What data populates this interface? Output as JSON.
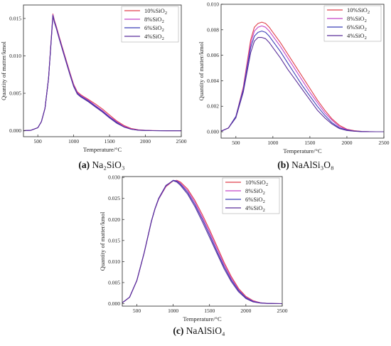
{
  "chart_data": [
    {
      "type": "line",
      "caption_letter": "(a)",
      "caption_text": "Na₂SiO₃",
      "xlabel": "Temperature/°C",
      "ylabel": "Quantity of matter/kmol",
      "xlim": [
        300,
        2500
      ],
      "ylim": [
        -0.0008,
        0.0168
      ],
      "xticks": [
        "500",
        "1000",
        "1500",
        "2000",
        "2500"
      ],
      "xtick_values": [
        500,
        1000,
        1500,
        2000,
        2500
      ],
      "yticks": [
        "0.000",
        "0.005",
        "0.010",
        "0.015"
      ],
      "ytick_values": [
        0,
        0.005,
        0.01,
        0.015
      ],
      "legend_position": "top-right",
      "series": [
        {
          "name": "10%SiO₂",
          "color": "#e0404c",
          "x": [
            300,
            400,
            500,
            550,
            600,
            650,
            690,
            710,
            730,
            760,
            800,
            850,
            900,
            950,
            1000,
            1050,
            1100,
            1150,
            1200,
            1300,
            1400,
            1500,
            1600,
            1700,
            1800,
            1900,
            2000,
            2100,
            2200,
            2300,
            2400,
            2500
          ],
          "y": [
            0,
            5e-05,
            0.0004,
            0.0012,
            0.003,
            0.007,
            0.0128,
            0.0156,
            0.0148,
            0.0139,
            0.0125,
            0.0109,
            0.0093,
            0.0077,
            0.0062,
            0.0052,
            0.0048,
            0.0045,
            0.0042,
            0.0036,
            0.0029,
            0.0021,
            0.0013,
            0.0007,
            0.0003,
            0.00012,
            5e-05,
            2e-05,
            1e-05,
            0,
            0,
            0
          ]
        },
        {
          "name": "8%SiO₂",
          "color": "#c445c8",
          "x": [
            300,
            400,
            500,
            550,
            600,
            650,
            690,
            710,
            730,
            760,
            800,
            850,
            900,
            950,
            1000,
            1050,
            1100,
            1150,
            1200,
            1300,
            1400,
            1500,
            1600,
            1700,
            1800,
            1900,
            2000,
            2100,
            2200,
            2300,
            2400,
            2500
          ],
          "y": [
            0,
            5e-05,
            0.0004,
            0.0012,
            0.003,
            0.007,
            0.0127,
            0.0155,
            0.0147,
            0.0138,
            0.0124,
            0.0108,
            0.0092,
            0.0076,
            0.0061,
            0.0051,
            0.0047,
            0.0044,
            0.0041,
            0.0034,
            0.0027,
            0.0019,
            0.0012,
            0.0006,
            0.00025,
            0.0001,
            4e-05,
            2e-05,
            1e-05,
            0,
            0,
            0
          ]
        },
        {
          "name": "6%SiO₂",
          "color": "#3b3fb8",
          "x": [
            300,
            400,
            500,
            550,
            600,
            650,
            690,
            710,
            730,
            760,
            800,
            850,
            900,
            950,
            1000,
            1050,
            1100,
            1150,
            1200,
            1300,
            1400,
            1500,
            1600,
            1700,
            1800,
            1900,
            2000,
            2100,
            2200,
            2300,
            2400,
            2500
          ],
          "y": [
            0,
            5e-05,
            0.0004,
            0.0012,
            0.003,
            0.007,
            0.0126,
            0.0154,
            0.0146,
            0.0137,
            0.0123,
            0.0107,
            0.0091,
            0.0075,
            0.006,
            0.005,
            0.0046,
            0.0043,
            0.004,
            0.0033,
            0.0026,
            0.0018,
            0.0011,
            0.0005,
            0.0002,
            8e-05,
            3e-05,
            1e-05,
            0,
            0,
            0,
            0
          ]
        },
        {
          "name": "4%SiO₂",
          "color": "#5a2f9a",
          "x": [
            300,
            400,
            500,
            550,
            600,
            650,
            690,
            710,
            730,
            760,
            800,
            850,
            900,
            950,
            1000,
            1050,
            1100,
            1150,
            1200,
            1300,
            1400,
            1500,
            1600,
            1700,
            1800,
            1900,
            2000,
            2100,
            2200,
            2300,
            2400,
            2500
          ],
          "y": [
            0,
            5e-05,
            0.0004,
            0.0012,
            0.003,
            0.007,
            0.0125,
            0.0153,
            0.0145,
            0.0136,
            0.0122,
            0.0106,
            0.009,
            0.0074,
            0.0059,
            0.0049,
            0.0045,
            0.0042,
            0.0039,
            0.0032,
            0.0025,
            0.0017,
            0.001,
            0.0005,
            0.0002,
            7e-05,
            3e-05,
            1e-05,
            0,
            0,
            0,
            0
          ]
        }
      ]
    },
    {
      "type": "line",
      "caption_letter": "(b)",
      "caption_text": "NaAlSi₃O₈",
      "xlabel": "Temperature/°C",
      "ylabel": "Quantity of matter/kmol",
      "xlim": [
        300,
        2500
      ],
      "ylim": [
        -0.0005,
        0.01
      ],
      "xticks": [
        "500",
        "1000",
        "1500",
        "2000",
        "2500"
      ],
      "xtick_values": [
        500,
        1000,
        1500,
        2000,
        2500
      ],
      "yticks": [
        "0.000",
        "0.002",
        "0.004",
        "0.006",
        "0.008",
        "0.010"
      ],
      "ytick_values": [
        0,
        0.002,
        0.004,
        0.006,
        0.008,
        0.01
      ],
      "legend_position": "top-right",
      "series": [
        {
          "name": "10%SiO₂",
          "color": "#e0404c",
          "x": [
            300,
            400,
            500,
            600,
            700,
            750,
            800,
            850,
            900,
            950,
            1000,
            1100,
            1200,
            1300,
            1400,
            1500,
            1600,
            1700,
            1800,
            1900,
            2000,
            2100,
            2200,
            2300,
            2400,
            2500
          ],
          "y": [
            5e-05,
            0.0003,
            0.0012,
            0.0035,
            0.0072,
            0.0082,
            0.0085,
            0.0086,
            0.0085,
            0.0082,
            0.0078,
            0.007,
            0.0061,
            0.0052,
            0.0043,
            0.0034,
            0.0025,
            0.0017,
            0.001,
            0.0005,
            0.0002,
            8e-05,
            3e-05,
            1e-05,
            0,
            0
          ]
        },
        {
          "name": "8%SiO₂",
          "color": "#c445c8",
          "x": [
            300,
            400,
            500,
            600,
            700,
            750,
            800,
            850,
            900,
            950,
            1000,
            1100,
            1200,
            1300,
            1400,
            1500,
            1600,
            1700,
            1800,
            1900,
            2000,
            2100,
            2200,
            2300,
            2400,
            2500
          ],
          "y": [
            5e-05,
            0.0003,
            0.0012,
            0.0034,
            0.0069,
            0.0079,
            0.0082,
            0.0083,
            0.0082,
            0.0079,
            0.0075,
            0.0067,
            0.0058,
            0.0049,
            0.004,
            0.0031,
            0.0023,
            0.0015,
            0.0009,
            0.0004,
            0.00017,
            6e-05,
            2e-05,
            1e-05,
            0,
            0
          ]
        },
        {
          "name": "6%SiO₂",
          "color": "#3b3fb8",
          "x": [
            300,
            400,
            500,
            600,
            700,
            750,
            800,
            850,
            900,
            950,
            1000,
            1100,
            1200,
            1300,
            1400,
            1500,
            1600,
            1700,
            1800,
            1900,
            2000,
            2100,
            2200,
            2300,
            2400,
            2500
          ],
          "y": [
            5e-05,
            0.0003,
            0.0012,
            0.0033,
            0.0066,
            0.0075,
            0.0078,
            0.0079,
            0.0078,
            0.0075,
            0.0071,
            0.0063,
            0.0054,
            0.0045,
            0.0036,
            0.0028,
            0.002,
            0.0013,
            0.0007,
            0.0003,
            0.00013,
            5e-05,
            2e-05,
            1e-05,
            0,
            0
          ]
        },
        {
          "name": "4%SiO₂",
          "color": "#5a2f9a",
          "x": [
            300,
            400,
            500,
            600,
            700,
            750,
            800,
            850,
            900,
            950,
            1000,
            1100,
            1200,
            1300,
            1400,
            1500,
            1600,
            1700,
            1800,
            1900,
            2000,
            2100,
            2200,
            2300,
            2400,
            2500
          ],
          "y": [
            5e-05,
            0.0003,
            0.0011,
            0.0031,
            0.0062,
            0.0071,
            0.0074,
            0.0074,
            0.0073,
            0.007,
            0.0066,
            0.0058,
            0.0049,
            0.0041,
            0.0033,
            0.0025,
            0.0017,
            0.0011,
            0.0006,
            0.00025,
            0.0001,
            4e-05,
            1e-05,
            0,
            0,
            0
          ]
        }
      ]
    },
    {
      "type": "line",
      "caption_letter": "(c)",
      "caption_text": "NaAlSiO₄",
      "xlabel": "Temperature/°C",
      "ylabel": "Quantity of matter/kmol",
      "xlim": [
        300,
        2500
      ],
      "ylim": [
        -0.0006,
        0.0302
      ],
      "xticks": [
        "500",
        "1000",
        "1500",
        "2000",
        "2500"
      ],
      "xtick_values": [
        500,
        1000,
        1500,
        2000,
        2500
      ],
      "yticks": [
        "0.000",
        "0.005",
        "0.010",
        "0.015",
        "0.020",
        "0.025",
        "0.030"
      ],
      "ytick_values": [
        0,
        0.005,
        0.01,
        0.015,
        0.02,
        0.025,
        0.03
      ],
      "legend_position": "top-right",
      "series": [
        {
          "name": "10%SiO₂",
          "color": "#e0404c",
          "x": [
            300,
            400,
            500,
            600,
            700,
            750,
            800,
            900,
            1000,
            1050,
            1100,
            1200,
            1300,
            1400,
            1500,
            1600,
            1700,
            1800,
            1900,
            2000,
            2100,
            2200,
            2300,
            2400,
            2500
          ],
          "y": [
            0.0002,
            0.0015,
            0.0055,
            0.012,
            0.0195,
            0.0225,
            0.0248,
            0.0278,
            0.0292,
            0.0293,
            0.0289,
            0.0272,
            0.0245,
            0.0212,
            0.0176,
            0.0137,
            0.0098,
            0.0064,
            0.0036,
            0.0017,
            0.0007,
            0.0002,
            5e-05,
            1e-05,
            0
          ]
        },
        {
          "name": "8%SiO₂",
          "color": "#c445c8",
          "x": [
            300,
            400,
            500,
            600,
            700,
            750,
            800,
            900,
            1000,
            1050,
            1100,
            1200,
            1300,
            1400,
            1500,
            1600,
            1700,
            1800,
            1900,
            2000,
            2100,
            2200,
            2300,
            2400,
            2500
          ],
          "y": [
            0.0002,
            0.0015,
            0.0055,
            0.012,
            0.0195,
            0.0225,
            0.0248,
            0.0279,
            0.0293,
            0.0292,
            0.0286,
            0.0268,
            0.024,
            0.0206,
            0.017,
            0.0131,
            0.0093,
            0.006,
            0.0033,
            0.0015,
            0.0006,
            0.0002,
            5e-05,
            1e-05,
            0
          ]
        },
        {
          "name": "6%SiO₂",
          "color": "#3b3fb8",
          "x": [
            300,
            400,
            500,
            600,
            700,
            750,
            800,
            900,
            1000,
            1050,
            1100,
            1200,
            1300,
            1400,
            1500,
            1600,
            1700,
            1800,
            1900,
            2000,
            2100,
            2200,
            2300,
            2400,
            2500
          ],
          "y": [
            0.0002,
            0.0015,
            0.0055,
            0.012,
            0.0195,
            0.0225,
            0.0249,
            0.028,
            0.0293,
            0.0291,
            0.0284,
            0.0264,
            0.0235,
            0.0201,
            0.0164,
            0.0125,
            0.0088,
            0.0056,
            0.0031,
            0.0014,
            0.0005,
            0.00015,
            4e-05,
            1e-05,
            0
          ]
        },
        {
          "name": "4%SiO₂",
          "color": "#5a2f9a",
          "x": [
            300,
            400,
            500,
            600,
            700,
            750,
            800,
            900,
            1000,
            1050,
            1100,
            1200,
            1300,
            1400,
            1500,
            1600,
            1700,
            1800,
            1900,
            2000,
            2100,
            2200,
            2300,
            2400,
            2500
          ],
          "y": [
            0.0002,
            0.0015,
            0.0055,
            0.012,
            0.0196,
            0.0226,
            0.025,
            0.0281,
            0.0292,
            0.0289,
            0.0281,
            0.026,
            0.023,
            0.0195,
            0.0158,
            0.012,
            0.0083,
            0.0052,
            0.0028,
            0.0012,
            0.0004,
            0.00012,
            3e-05,
            1e-05,
            0
          ]
        }
      ]
    }
  ]
}
